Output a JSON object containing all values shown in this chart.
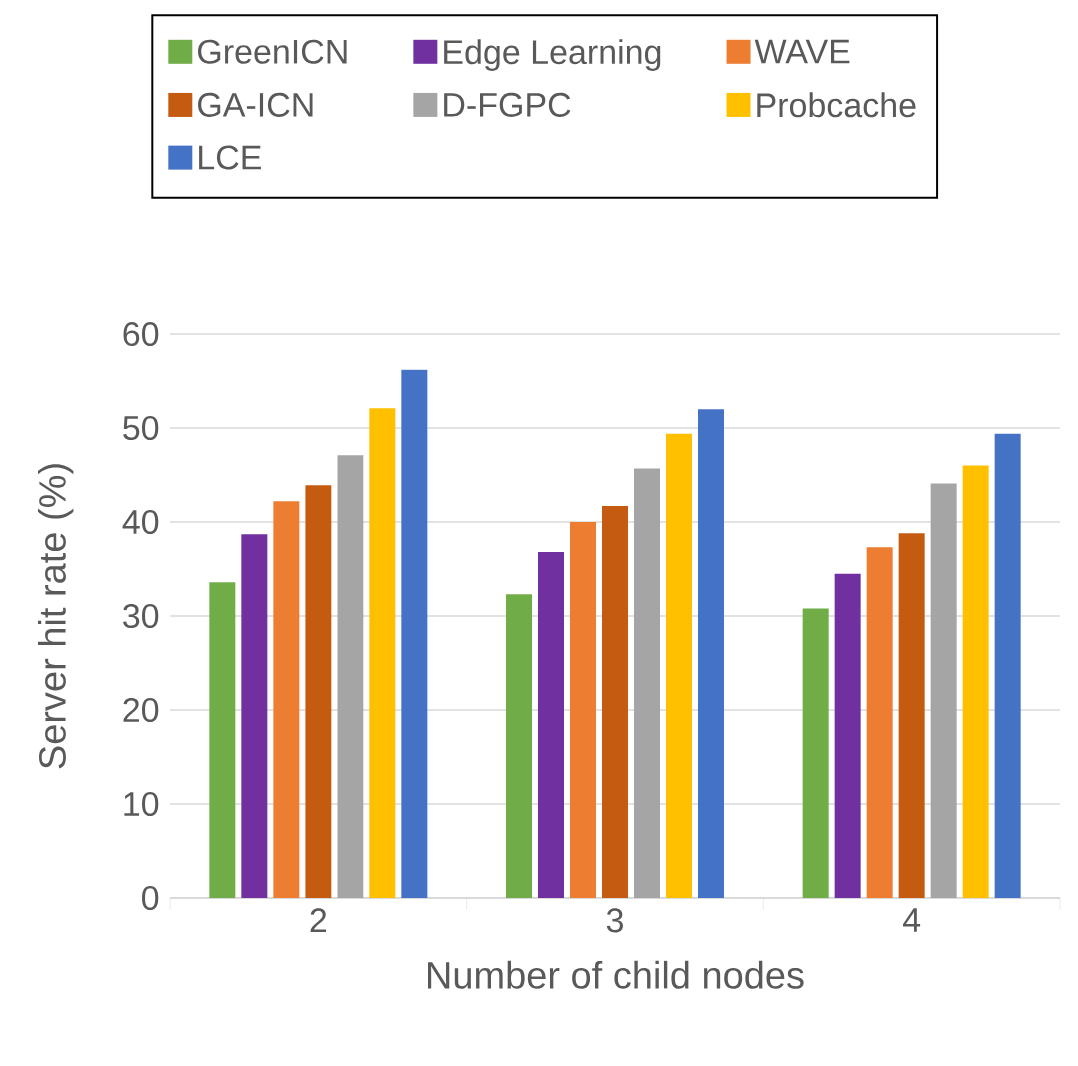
{
  "chart_data": {
    "type": "bar",
    "xlabel": "Number of child nodes",
    "ylabel": "Server hit rate (%)",
    "categories": [
      "2",
      "3",
      "4"
    ],
    "series": [
      {
        "name": "GreenICN",
        "color": "#70ad47",
        "values": [
          33.6,
          32.3,
          30.8
        ]
      },
      {
        "name": "Edge Learning",
        "color": "#7030a0",
        "values": [
          38.7,
          36.8,
          34.5
        ]
      },
      {
        "name": "WAVE",
        "color": "#ed7d31",
        "values": [
          42.2,
          40.0,
          37.3
        ]
      },
      {
        "name": "GA-ICN",
        "color": "#c55a11",
        "values": [
          43.9,
          41.7,
          38.8
        ]
      },
      {
        "name": "D-FGPC",
        "color": "#a5a5a5",
        "values": [
          47.1,
          45.7,
          44.1
        ]
      },
      {
        "name": "Probcache",
        "color": "#ffc000",
        "values": [
          52.1,
          49.4,
          46.0
        ]
      },
      {
        "name": "LCE",
        "color": "#4472c4",
        "values": [
          56.2,
          52.0,
          49.4
        ]
      }
    ],
    "ylim": [
      0,
      60
    ],
    "yticks": [
      0,
      10,
      20,
      30,
      40,
      50,
      60
    ],
    "grid": "y",
    "legend": "top"
  }
}
